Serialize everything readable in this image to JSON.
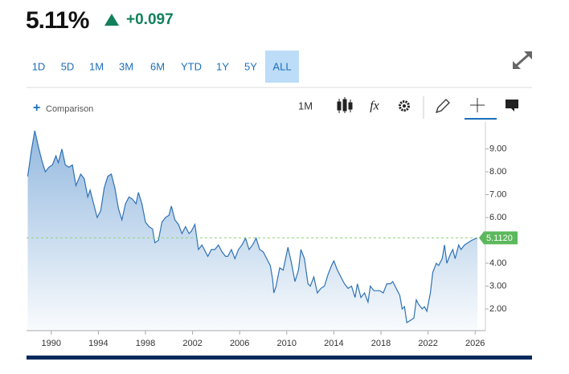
{
  "header": {
    "price": "5.11%",
    "change": "+0.097"
  },
  "tabs": [
    "1D",
    "5D",
    "1M",
    "3M",
    "6M",
    "YTD",
    "1Y",
    "5Y",
    "ALL"
  ],
  "active_tab": 8,
  "toolbar": {
    "comparison": "Comparison",
    "interval": "1M",
    "indicators": "fx"
  },
  "chart_data": {
    "type": "area",
    "color": "#2f72b5",
    "x": [
      1988.0,
      1988.3,
      1988.6,
      1988.9,
      1989.2,
      1989.5,
      1989.8,
      1990.1,
      1990.4,
      1990.6,
      1990.9,
      1991.2,
      1991.5,
      1991.8,
      1992.1,
      1992.5,
      1992.8,
      1993.1,
      1993.3,
      1993.6,
      1993.9,
      1994.2,
      1994.5,
      1994.8,
      1995.1,
      1995.4,
      1995.7,
      1996.0,
      1996.3,
      1996.6,
      1996.9,
      1997.2,
      1997.4,
      1997.7,
      1998.0,
      1998.3,
      1998.6,
      1998.8,
      1999.1,
      1999.4,
      1999.7,
      2000.0,
      2000.2,
      2000.5,
      2000.8,
      2001.1,
      2001.4,
      2001.7,
      2001.9,
      2002.2,
      2002.5,
      2002.8,
      2003.0,
      2003.3,
      2003.6,
      2003.9,
      2004.2,
      2004.5,
      2004.8,
      2005.0,
      2005.3,
      2005.6,
      2005.9,
      2006.2,
      2006.5,
      2006.8,
      2007.1,
      2007.4,
      2007.7,
      2008.0,
      2008.2,
      2008.6,
      2008.8,
      2008.9,
      2009.1,
      2009.4,
      2009.7,
      2010.1,
      2010.4,
      2010.7,
      2011.0,
      2011.2,
      2011.5,
      2011.8,
      2012.0,
      2012.3,
      2012.6,
      2012.9,
      2013.2,
      2013.5,
      2013.8,
      2014.0,
      2014.3,
      2014.6,
      2014.9,
      2015.2,
      2015.5,
      2015.8,
      2016.0,
      2016.3,
      2016.6,
      2016.9,
      2017.1,
      2017.4,
      2017.7,
      2017.9,
      2018.2,
      2018.5,
      2018.8,
      2019.0,
      2019.3,
      2019.6,
      2019.8,
      2020.0,
      2020.2,
      2020.5,
      2020.8,
      2021.0,
      2021.2,
      2021.5,
      2021.7,
      2021.9,
      2022.2,
      2022.4,
      2022.7,
      2022.9,
      2023.2,
      2023.4,
      2023.6,
      2023.9,
      2024.1,
      2024.3,
      2024.6,
      2024.8,
      2025.1,
      2025.4,
      2025.7,
      2026.2
    ],
    "values": [
      7.8,
      8.9,
      9.8,
      9.1,
      8.5,
      8.0,
      8.2,
      8.3,
      8.7,
      8.4,
      9.0,
      8.3,
      8.2,
      8.3,
      7.4,
      7.9,
      7.7,
      6.9,
      7.2,
      6.6,
      6.0,
      6.3,
      7.3,
      7.8,
      7.9,
      7.3,
      6.4,
      5.9,
      6.6,
      6.9,
      6.8,
      6.6,
      7.1,
      6.6,
      5.8,
      5.6,
      5.5,
      4.9,
      5.0,
      5.8,
      6.0,
      6.1,
      6.5,
      5.9,
      5.7,
      5.3,
      5.6,
      5.3,
      5.4,
      5.7,
      4.6,
      4.8,
      4.6,
      4.3,
      4.6,
      4.6,
      4.8,
      4.5,
      4.3,
      4.3,
      4.6,
      4.2,
      4.6,
      4.8,
      5.1,
      4.6,
      4.8,
      5.1,
      4.6,
      4.5,
      4.3,
      3.9,
      3.3,
      2.7,
      3.0,
      3.8,
      3.7,
      4.7,
      4.0,
      3.2,
      3.7,
      4.6,
      4.2,
      3.1,
      3.0,
      3.4,
      2.7,
      2.9,
      3.0,
      3.5,
      3.9,
      4.1,
      3.7,
      3.4,
      3.1,
      2.9,
      3.0,
      2.5,
      3.1,
      2.5,
      2.7,
      2.3,
      3.0,
      2.8,
      2.8,
      2.8,
      2.7,
      3.1,
      3.1,
      3.2,
      2.9,
      2.6,
      2.0,
      2.1,
      1.4,
      1.5,
      1.6,
      2.4,
      2.2,
      2.0,
      2.1,
      1.9,
      2.7,
      3.6,
      4.0,
      3.9,
      4.2,
      4.8,
      4.0,
      4.4,
      4.6,
      4.2,
      4.8,
      4.6,
      4.8,
      4.9,
      5.0,
      5.112
    ],
    "xlim": [
      1987.9,
      2026.6
    ],
    "xticks": [
      1990,
      1994,
      1998,
      2002,
      2006,
      2010,
      2014,
      2018,
      2022,
      2026
    ],
    "ylim": [
      1.05,
      10.18
    ],
    "yticks": [
      {
        "value": 2,
        "label": "2.00"
      },
      {
        "value": 3,
        "label": "3.00"
      },
      {
        "value": 4,
        "label": "4.00"
      },
      {
        "value": 6,
        "label": "6.00"
      },
      {
        "value": 7,
        "label": "7.00"
      },
      {
        "value": 8,
        "label": "8.00"
      },
      {
        "value": 9,
        "label": "9.00"
      }
    ],
    "current": {
      "value": 5.112,
      "label": "5.1120"
    }
  }
}
